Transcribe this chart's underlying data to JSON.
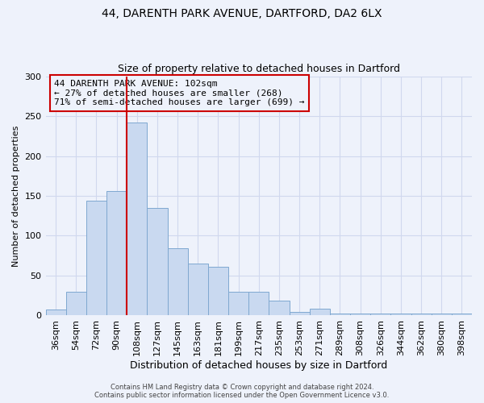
{
  "title1": "44, DARENTH PARK AVENUE, DARTFORD, DA2 6LX",
  "title2": "Size of property relative to detached houses in Dartford",
  "xlabel": "Distribution of detached houses by size in Dartford",
  "ylabel": "Number of detached properties",
  "bin_labels": [
    "36sqm",
    "54sqm",
    "72sqm",
    "90sqm",
    "108sqm",
    "127sqm",
    "145sqm",
    "163sqm",
    "181sqm",
    "199sqm",
    "217sqm",
    "235sqm",
    "253sqm",
    "271sqm",
    "289sqm",
    "308sqm",
    "326sqm",
    "344sqm",
    "362sqm",
    "380sqm",
    "398sqm"
  ],
  "bar_values": [
    8,
    30,
    144,
    156,
    242,
    135,
    84,
    65,
    61,
    30,
    30,
    19,
    5,
    9,
    2,
    2,
    2,
    2,
    2,
    2,
    2
  ],
  "bar_color": "#c9d9f0",
  "bar_edge_color": "#7fa8d0",
  "ylim": [
    0,
    300
  ],
  "yticks": [
    0,
    50,
    100,
    150,
    200,
    250,
    300
  ],
  "vline_color": "#cc0000",
  "annotation_title": "44 DARENTH PARK AVENUE: 102sqm",
  "annotation_line1": "← 27% of detached houses are smaller (268)",
  "annotation_line2": "71% of semi-detached houses are larger (699) →",
  "annotation_box_color": "#cc0000",
  "footer1": "Contains HM Land Registry data © Crown copyright and database right 2024.",
  "footer2": "Contains public sector information licensed under the Open Government Licence v3.0.",
  "background_color": "#eef2fb",
  "grid_color": "#d0d8ee",
  "vline_bar_index": 4
}
